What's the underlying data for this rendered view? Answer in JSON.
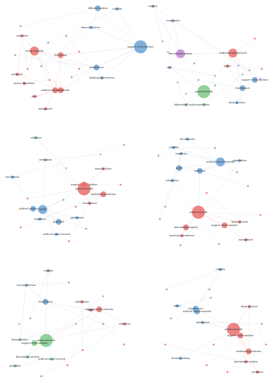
{
  "colors": {
    "red": "#ea6f6f",
    "blue": "#6aa3d5",
    "green": "#7fc98a",
    "purple": "#c08ad0",
    "edge": "#cfd6e0"
  },
  "panels": [
    {
      "id": "p1",
      "nodes": [
        {
          "label": "diffusion analysis",
          "color": "blue",
          "size": "m"
        },
        {
          "label": "volatility",
          "color": "blue",
          "size": "s"
        },
        {
          "label": "financial distress",
          "color": "blue",
          "size": "s"
        },
        {
          "label": "support vector machine",
          "color": "blue",
          "size": "xl"
        },
        {
          "label": "classification",
          "color": "blue",
          "size": "m"
        },
        {
          "label": "bankruptcy prediction",
          "color": "blue",
          "size": "s"
        },
        {
          "label": "neural networks",
          "color": "red",
          "size": "l"
        },
        {
          "label": "regression",
          "color": "red",
          "size": "s"
        },
        {
          "label": "forecasting",
          "color": "red",
          "size": "m"
        },
        {
          "label": "genetic algorithms",
          "color": "red",
          "size": "s"
        },
        {
          "label": "artificial neural networks",
          "color": "red",
          "size": "m"
        },
        {
          "label": "stock",
          "color": "red",
          "size": "s"
        },
        {
          "label": "management",
          "color": "red",
          "size": "s"
        },
        {
          "label": "model",
          "color": "red",
          "size": "m"
        },
        {
          "label": "prediction",
          "color": "red",
          "size": "s"
        }
      ]
    },
    {
      "id": "p2",
      "nodes": [
        {
          "label": "analysis",
          "color": "purple",
          "size": "s"
        },
        {
          "label": "computation",
          "color": "purple",
          "size": "s"
        },
        {
          "label": "discriminant analysis",
          "color": "purple",
          "size": "l"
        },
        {
          "label": "ratio",
          "color": "purple",
          "size": "s"
        },
        {
          "label": "artificial neural network",
          "color": "red",
          "size": "l"
        },
        {
          "label": "model",
          "color": "red",
          "size": "s"
        },
        {
          "label": "support vector machine",
          "color": "blue",
          "size": "m"
        },
        {
          "label": "classification",
          "color": "blue",
          "size": "m"
        },
        {
          "label": "financial ratios",
          "color": "blue",
          "size": "s"
        },
        {
          "label": "neural networks",
          "color": "green",
          "size": "xl"
        },
        {
          "label": "bifurcational analysis",
          "color": "green",
          "size": "s"
        },
        {
          "label": "prediction",
          "color": "green",
          "size": "s"
        }
      ]
    },
    {
      "id": "p3",
      "nodes": [
        {
          "label": "validation",
          "color": "green",
          "size": "s"
        },
        {
          "label": "information",
          "color": "green",
          "size": "s"
        },
        {
          "label": "discriminant",
          "color": "blue",
          "size": "s"
        },
        {
          "label": "support vector machine",
          "color": "red",
          "size": "m"
        },
        {
          "label": "financial ratios",
          "color": "red",
          "size": "s"
        },
        {
          "label": "neural networks",
          "color": "red",
          "size": "xl"
        },
        {
          "label": "bankruptcy prediction",
          "color": "red",
          "size": "m"
        },
        {
          "label": "classification",
          "color": "red",
          "size": "s"
        },
        {
          "label": "artificial neural networks",
          "color": "blue",
          "size": "m"
        },
        {
          "label": "model",
          "color": "blue",
          "size": "l"
        },
        {
          "label": "prediction",
          "color": "blue",
          "size": "m"
        },
        {
          "label": "artificial neural network",
          "color": "blue",
          "size": "s"
        },
        {
          "label": "regression",
          "color": "blue",
          "size": "s"
        },
        {
          "label": "optimization",
          "color": "blue",
          "size": "s"
        }
      ]
    },
    {
      "id": "p4",
      "nodes": [
        {
          "label": "discriminants",
          "color": "blue",
          "size": "s"
        },
        {
          "label": "volatility",
          "color": "blue",
          "size": "s"
        },
        {
          "label": "artificial neural networks",
          "color": "blue",
          "size": "l"
        },
        {
          "label": "prediction",
          "color": "blue",
          "size": "m"
        },
        {
          "label": "model",
          "color": "blue",
          "size": "m"
        },
        {
          "label": "regression",
          "color": "blue",
          "size": "s"
        },
        {
          "label": "optimization",
          "color": "blue",
          "size": "s"
        },
        {
          "label": "information",
          "color": "blue",
          "size": "s"
        },
        {
          "label": "neural networks",
          "color": "red",
          "size": "xl"
        },
        {
          "label": "financial ratios",
          "color": "red",
          "size": "s"
        },
        {
          "label": "support vector machine",
          "color": "red",
          "size": "m"
        },
        {
          "label": "discriminant analysis",
          "color": "red",
          "size": "m"
        },
        {
          "label": "bankruptcy prediction",
          "color": "red",
          "size": "s"
        },
        {
          "label": "management",
          "color": "red",
          "size": "s"
        }
      ]
    },
    {
      "id": "p5",
      "nodes": [
        {
          "label": "volatility",
          "color": "blue",
          "size": "s"
        },
        {
          "label": "feature selection",
          "color": "blue",
          "size": "s"
        },
        {
          "label": "classification",
          "color": "blue",
          "size": "m"
        },
        {
          "label": "model",
          "color": "red",
          "size": "s"
        },
        {
          "label": "optimization",
          "color": "red",
          "size": "s"
        },
        {
          "label": "artificial neural networks",
          "color": "red",
          "size": "m"
        },
        {
          "label": "regression",
          "color": "red",
          "size": "s"
        },
        {
          "label": "neural networks",
          "color": "green",
          "size": "xl"
        },
        {
          "label": "support vector machine",
          "color": "green",
          "size": "m"
        },
        {
          "label": "financial ratios",
          "color": "green",
          "size": "s"
        },
        {
          "label": "discriminant analysis",
          "color": "green",
          "size": "s"
        },
        {
          "label": "artificial neural network",
          "color": "green",
          "size": "s"
        },
        {
          "label": "prediction",
          "color": "green",
          "size": "s"
        }
      ]
    },
    {
      "id": "p6",
      "nodes": [
        {
          "label": "volatility",
          "color": "blue",
          "size": "s"
        },
        {
          "label": "classification",
          "color": "blue",
          "size": "m"
        },
        {
          "label": "artificial neural networks",
          "color": "blue",
          "size": "m"
        },
        {
          "label": "model",
          "color": "blue",
          "size": "s"
        },
        {
          "label": "optimization",
          "color": "blue",
          "size": "s"
        },
        {
          "label": "financial ratios",
          "color": "red",
          "size": "s"
        },
        {
          "label": "neural networks",
          "color": "red",
          "size": "xl"
        },
        {
          "label": "support vector machine",
          "color": "red",
          "size": "m"
        },
        {
          "label": "bankruptcy prediction",
          "color": "red",
          "size": "m"
        },
        {
          "label": "discriminant analysis",
          "color": "red",
          "size": "s"
        },
        {
          "label": "prediction",
          "color": "red",
          "size": "s"
        },
        {
          "label": "decision making",
          "color": "blue",
          "size": "s"
        }
      ]
    }
  ]
}
